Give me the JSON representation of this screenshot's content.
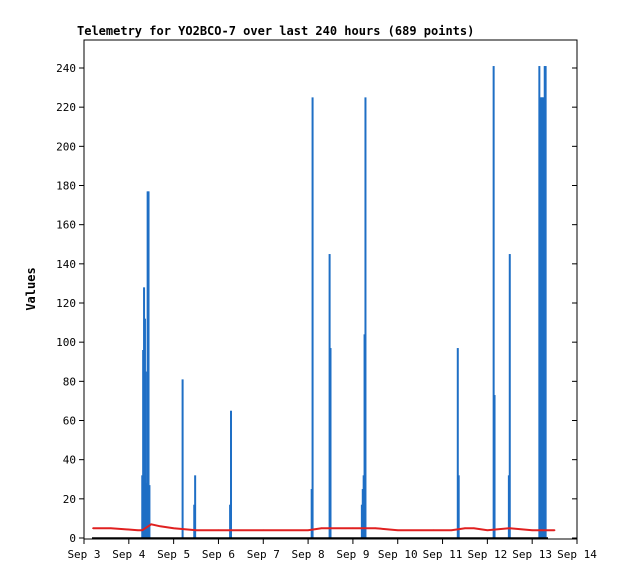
{
  "chart_data": {
    "type": "bar",
    "title": "Telemetry for YO2BCO-7 over last 240 hours (689 points)",
    "xlabel": "",
    "ylabel": "Values",
    "ylim": [
      0,
      255
    ],
    "xlim_days": [
      3.0,
      14.0
    ],
    "x_ticks": [
      "Sep 3",
      "Sep 4",
      "Sep 5",
      "Sep 6",
      "Sep 7",
      "Sep 8",
      "Sep 9",
      "Sep 10",
      "Sep 11",
      "Sep 12",
      "Sep 13",
      "Sep 14"
    ],
    "x_tick_days": [
      3,
      4,
      5,
      6,
      7,
      8,
      9,
      10,
      11,
      12,
      13,
      14
    ],
    "y_ticks": [
      0,
      20,
      40,
      60,
      80,
      100,
      120,
      140,
      160,
      180,
      200,
      220,
      240
    ],
    "grid": false,
    "colors": {
      "bars": "#1f6fc5",
      "line": "#e02020",
      "baseline": "#000000"
    },
    "series": [
      {
        "type": "bar",
        "x_day": [
          4.3,
          4.32,
          4.34,
          4.36,
          4.38,
          4.4,
          4.42,
          4.44,
          4.46,
          5.2,
          5.46,
          5.48,
          6.26,
          6.28,
          8.08,
          8.1,
          8.48,
          8.5,
          9.2,
          9.22,
          9.24,
          9.26,
          9.28,
          11.34,
          11.36,
          12.14,
          12.16,
          12.48,
          12.5,
          13.16,
          13.18,
          13.2,
          13.22,
          13.24,
          13.26,
          13.28,
          13.3
        ],
        "values": [
          32,
          96,
          128,
          112,
          85,
          28,
          177,
          177,
          27,
          81,
          17,
          32,
          17,
          65,
          25,
          225,
          145,
          97,
          17,
          25,
          32,
          104,
          225,
          97,
          32,
          241,
          73,
          32,
          145,
          241,
          225,
          225,
          225,
          225,
          225,
          241,
          241
        ]
      },
      {
        "type": "line",
        "x_day": [
          3.2,
          3.6,
          4.2,
          4.3,
          4.5,
          4.7,
          5.0,
          5.5,
          6.0,
          7.0,
          8.0,
          8.3,
          9.0,
          9.5,
          10.0,
          10.8,
          11.2,
          11.5,
          11.7,
          12.0,
          12.5,
          13.0,
          13.5
        ],
        "values": [
          5,
          5,
          4,
          4,
          7,
          6,
          5,
          4,
          4,
          4,
          4,
          5,
          5,
          5,
          4,
          4,
          4,
          5,
          5,
          4,
          5,
          4,
          4
        ]
      }
    ]
  }
}
